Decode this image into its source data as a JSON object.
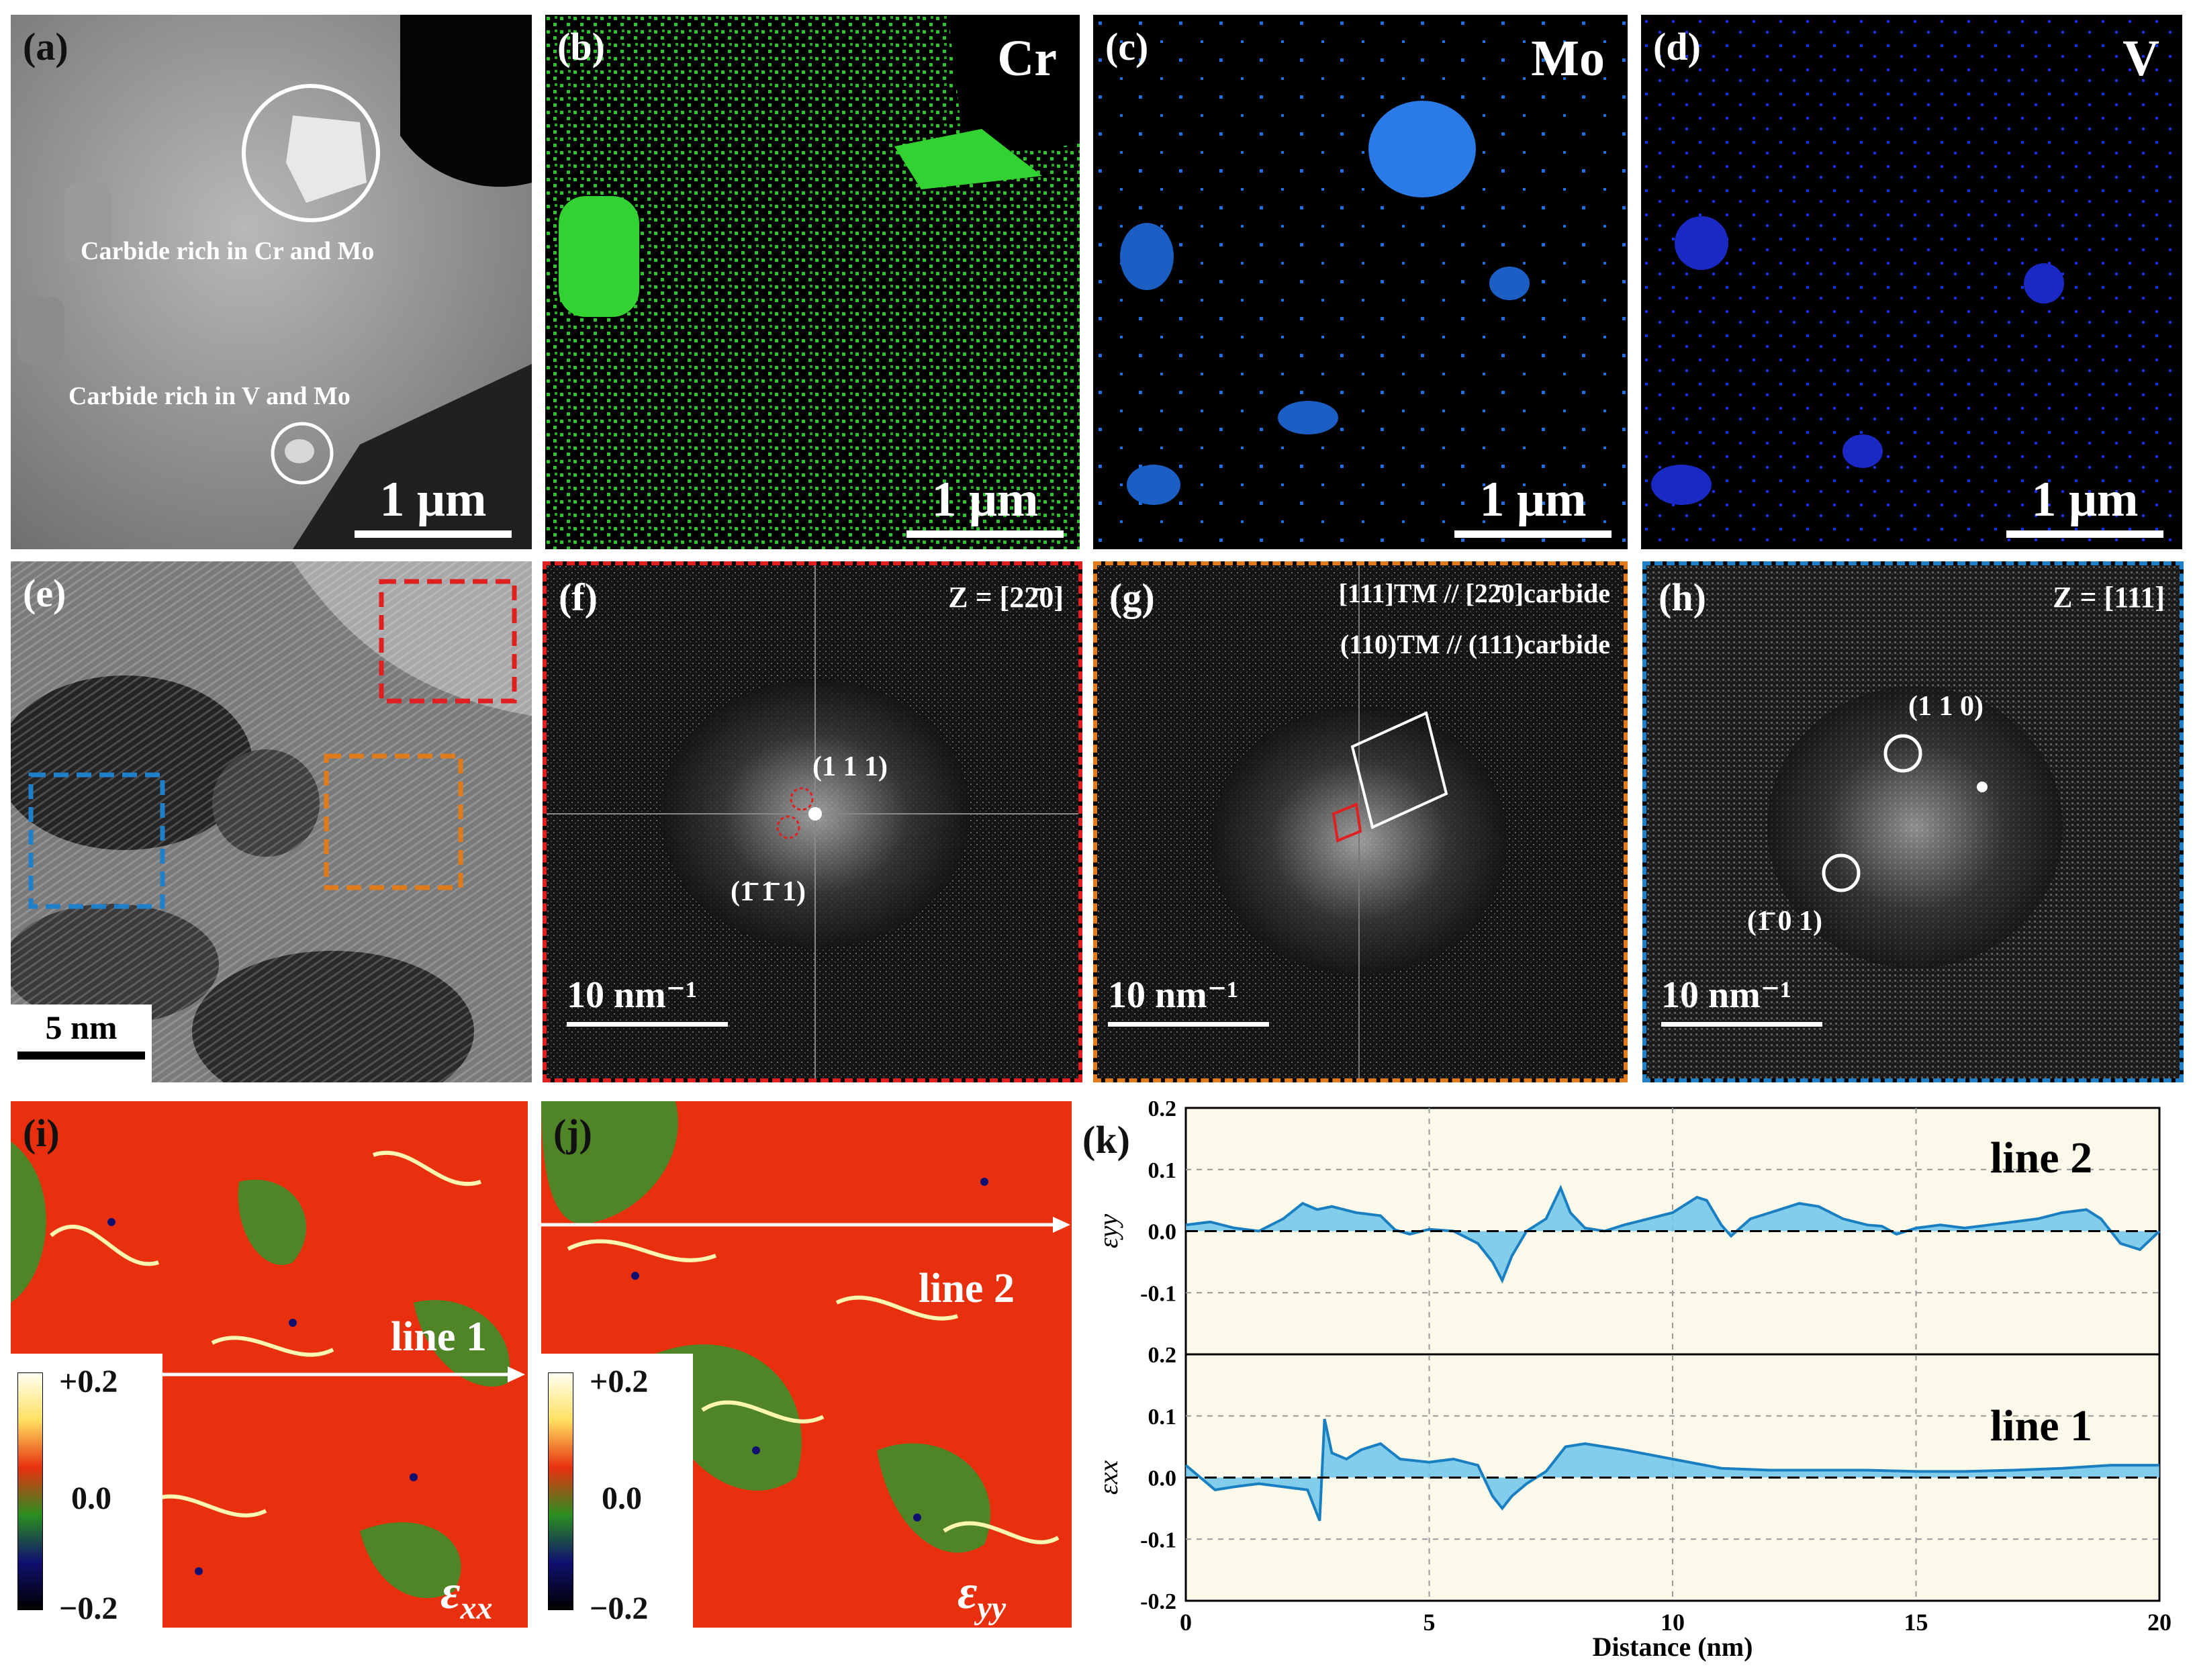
{
  "panels": {
    "a": {
      "label": "(a)",
      "scale": "1 μm",
      "ann1": "Carbide rich in Cr and Mo",
      "ann2": "Carbide rich in V and Mo"
    },
    "b": {
      "label": "(b)",
      "element": "Cr",
      "scale": "1 μm",
      "color": "#2fc42f"
    },
    "c": {
      "label": "(c)",
      "element": "Mo",
      "scale": "1 μm",
      "color": "#1f6fe0"
    },
    "d": {
      "label": "(d)",
      "element": "V",
      "scale": "1 μm",
      "color": "#1c2fe0"
    },
    "e": {
      "label": "(e)",
      "scale": "5 nm"
    },
    "f": {
      "label": "(f)",
      "zone": "Z = [22̄0]",
      "spot1": "(1 1 1)",
      "spot2": "(1̄ 1̄ 1)",
      "scale": "10  nm⁻¹",
      "frame": "#e02020"
    },
    "g": {
      "label": "(g)",
      "rel1": "[111]TM // [22̄0]carbide",
      "rel2": "(110)TM // (111)carbide",
      "scale": "10  nm⁻¹",
      "frame": "#e07a1a"
    },
    "h": {
      "label": "(h)",
      "zone": "Z = [111]",
      "spot1": "(1 1 0)",
      "spot2": "(1̄ 0 1)",
      "scale": "10  nm⁻¹",
      "frame": "#1f7fc8"
    },
    "i": {
      "label": "(i)",
      "line": "line 1",
      "comp": "ε",
      "sub": "xx",
      "cbmax": "+0.2",
      "cbmid": "0.0",
      "cbmin": "−0.2"
    },
    "j": {
      "label": "(j)",
      "line": "line 2",
      "comp": "ε",
      "sub": "yy",
      "cbmax": "+0.2",
      "cbmid": "0.0",
      "cbmin": "−0.2"
    },
    "k": {
      "label": "(k)"
    }
  },
  "chart_data": {
    "type": "area",
    "xlabel": "Distance (nm)",
    "xlim": [
      0,
      20
    ],
    "xticks": [
      0,
      5,
      10,
      15,
      20
    ],
    "subplots": [
      {
        "name": "line 2",
        "ylabel": "εyy",
        "ylim": [
          -0.2,
          0.2
        ],
        "yticks": [
          "0.2",
          "0.1",
          "0.0",
          "-0.1"
        ],
        "x": [
          0,
          0.5,
          1,
          1.5,
          2,
          2.4,
          2.7,
          3,
          3.5,
          4,
          4.3,
          4.6,
          5,
          5.5,
          6,
          6.3,
          6.5,
          6.7,
          7,
          7.4,
          7.7,
          7.9,
          8.2,
          8.6,
          9,
          9.5,
          10,
          10.5,
          10.7,
          11,
          11.2,
          11.6,
          12,
          12.6,
          13,
          13.5,
          14,
          14.3,
          14.6,
          15,
          15.5,
          16,
          16.5,
          17,
          17.5,
          18,
          18.5,
          18.8,
          19.2,
          19.6,
          20
        ],
        "values": [
          0.01,
          0.015,
          0.005,
          0.0,
          0.02,
          0.045,
          0.035,
          0.04,
          0.03,
          0.025,
          0.002,
          -0.005,
          0.003,
          0.0,
          -0.02,
          -0.05,
          -0.08,
          -0.04,
          0.0,
          0.02,
          0.07,
          0.03,
          0.005,
          0.0,
          0.01,
          0.02,
          0.03,
          0.055,
          0.05,
          0.01,
          -0.008,
          0.02,
          0.03,
          0.045,
          0.04,
          0.02,
          0.01,
          0.008,
          -0.005,
          0.005,
          0.01,
          0.005,
          0.01,
          0.015,
          0.02,
          0.03,
          0.035,
          0.02,
          -0.02,
          -0.03,
          0.0
        ]
      },
      {
        "name": "line 1",
        "ylabel": "εxx",
        "ylim": [
          -0.2,
          0.2
        ],
        "yticks": [
          "0.2",
          "0.1",
          "0.0",
          "-0.1",
          "-0.2"
        ],
        "x": [
          0,
          0.3,
          0.6,
          1,
          1.5,
          2,
          2.5,
          2.75,
          2.85,
          3,
          3.3,
          3.6,
          4,
          4.4,
          5,
          5.5,
          6,
          6.3,
          6.5,
          6.7,
          7,
          7.4,
          7.8,
          8.2,
          9,
          10,
          11,
          12,
          13,
          14,
          15,
          16,
          17,
          18,
          19,
          20
        ],
        "values": [
          0.02,
          0.0,
          -0.02,
          -0.015,
          -0.01,
          -0.015,
          -0.02,
          -0.07,
          0.095,
          0.04,
          0.03,
          0.045,
          0.055,
          0.03,
          0.025,
          0.03,
          0.02,
          -0.03,
          -0.05,
          -0.03,
          -0.01,
          0.01,
          0.05,
          0.055,
          0.045,
          0.03,
          0.015,
          0.012,
          0.012,
          0.012,
          0.01,
          0.01,
          0.012,
          0.015,
          0.02,
          0.02
        ]
      }
    ]
  }
}
